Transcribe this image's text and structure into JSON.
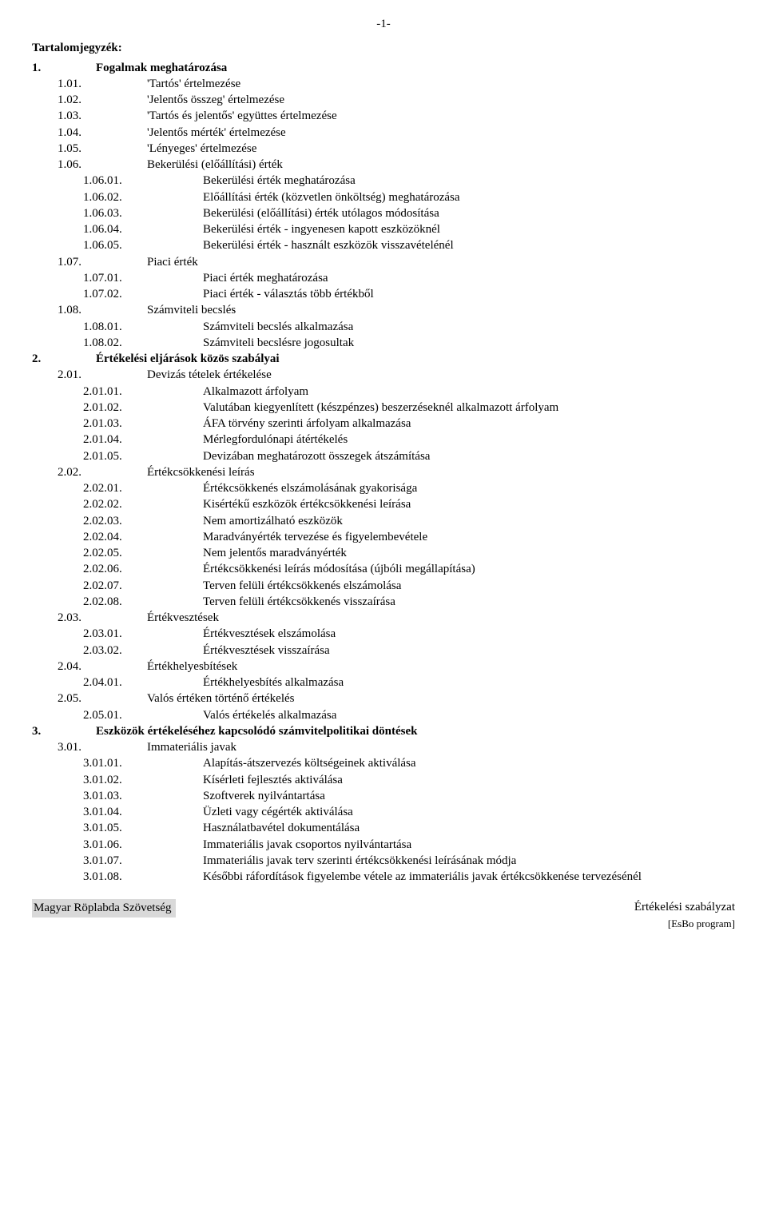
{
  "page_number": "-1-",
  "toc_title": "Tartalomjegyzék:",
  "entries": [
    {
      "level": 0,
      "num": "1.",
      "text": "Fogalmak meghatározása",
      "bold": true
    },
    {
      "level": 1,
      "num": "1.01.",
      "text": "'Tartós' értelmezése"
    },
    {
      "level": 1,
      "num": "1.02.",
      "text": "'Jelentős összeg' értelmezése"
    },
    {
      "level": 1,
      "num": "1.03.",
      "text": "'Tartós és jelentős' együttes értelmezése"
    },
    {
      "level": 1,
      "num": "1.04.",
      "text": "'Jelentős mérték' értelmezése"
    },
    {
      "level": 1,
      "num": "1.05.",
      "text": "'Lényeges' értelmezése"
    },
    {
      "level": 1,
      "num": "1.06.",
      "text": "Bekerülési (előállítási) érték"
    },
    {
      "level": 2,
      "num": "1.06.01.",
      "text": "Bekerülési érték meghatározása"
    },
    {
      "level": 2,
      "num": "1.06.02.",
      "text": "Előállítási érték (közvetlen önköltség) meghatározása"
    },
    {
      "level": 2,
      "num": "1.06.03.",
      "text": "Bekerülési (előállítási) érték utólagos módosítása"
    },
    {
      "level": 2,
      "num": "1.06.04.",
      "text": "Bekerülési érték - ingyenesen kapott eszközöknél"
    },
    {
      "level": 2,
      "num": "1.06.05.",
      "text": "Bekerülési érték - használt eszközök visszavételénél"
    },
    {
      "level": 1,
      "num": "1.07.",
      "text": "Piaci érték"
    },
    {
      "level": 2,
      "num": "1.07.01.",
      "text": "Piaci érték meghatározása"
    },
    {
      "level": 2,
      "num": "1.07.02.",
      "text": "Piaci érték - választás több értékből"
    },
    {
      "level": 1,
      "num": "1.08.",
      "text": "Számviteli becslés"
    },
    {
      "level": 2,
      "num": "1.08.01.",
      "text": "Számviteli becslés alkalmazása"
    },
    {
      "level": 2,
      "num": "1.08.02.",
      "text": "Számviteli becslésre jogosultak"
    },
    {
      "level": 0,
      "num": "2.",
      "text": "Értékelési eljárások közös szabályai",
      "bold": true
    },
    {
      "level": 1,
      "num": "2.01.",
      "text": "Devizás tételek értékelése"
    },
    {
      "level": 2,
      "num": "2.01.01.",
      "text": "Alkalmazott árfolyam"
    },
    {
      "level": 2,
      "num": "2.01.02.",
      "text": "Valutában kiegyenlített (készpénzes) beszerzéseknél alkalmazott árfolyam"
    },
    {
      "level": 2,
      "num": "2.01.03.",
      "text": "ÁFA törvény szerinti árfolyam alkalmazása"
    },
    {
      "level": 2,
      "num": "2.01.04.",
      "text": "Mérlegfordulónapi átértékelés"
    },
    {
      "level": 2,
      "num": "2.01.05.",
      "text": "Devizában meghatározott összegek átszámítása"
    },
    {
      "level": 1,
      "num": "2.02.",
      "text": "Értékcsökkenési leírás"
    },
    {
      "level": 2,
      "num": "2.02.01.",
      "text": "Értékcsökkenés elszámolásának gyakorisága"
    },
    {
      "level": 2,
      "num": "2.02.02.",
      "text": "Kisértékű eszközök értékcsökkenési leírása"
    },
    {
      "level": 2,
      "num": "2.02.03.",
      "text": "Nem amortizálható eszközök"
    },
    {
      "level": 2,
      "num": "2.02.04.",
      "text": "Maradványérték tervezése és figyelembevétele"
    },
    {
      "level": 2,
      "num": "2.02.05.",
      "text": "Nem jelentős maradványérték"
    },
    {
      "level": 2,
      "num": "2.02.06.",
      "text": "Értékcsökkenési leírás módosítása (újbóli megállapítása)"
    },
    {
      "level": 2,
      "num": "2.02.07.",
      "text": "Terven felüli értékcsökkenés elszámolása"
    },
    {
      "level": 2,
      "num": "2.02.08.",
      "text": "Terven felüli értékcsökkenés visszaírása"
    },
    {
      "level": 1,
      "num": "2.03.",
      "text": "Értékvesztések"
    },
    {
      "level": 2,
      "num": "2.03.01.",
      "text": "Értékvesztések elszámolása"
    },
    {
      "level": 2,
      "num": "2.03.02.",
      "text": "Értékvesztések visszaírása"
    },
    {
      "level": 1,
      "num": "2.04.",
      "text": "Értékhelyesbítések"
    },
    {
      "level": 2,
      "num": "2.04.01.",
      "text": "Értékhelyesbítés alkalmazása"
    },
    {
      "level": 1,
      "num": "2.05.",
      "text": "Valós értéken történő értékelés"
    },
    {
      "level": 2,
      "num": "2.05.01.",
      "text": "Valós értékelés alkalmazása"
    },
    {
      "level": 0,
      "num": "3.",
      "text": "Eszközök értékeléséhez kapcsolódó számvitelpolitikai döntések",
      "bold": true
    },
    {
      "level": 1,
      "num": "3.01.",
      "text": "Immateriális javak"
    },
    {
      "level": 2,
      "num": "3.01.01.",
      "text": "Alapítás-átszervezés költségeinek aktiválása"
    },
    {
      "level": 2,
      "num": "3.01.02.",
      "text": "Kísérleti fejlesztés aktiválása"
    },
    {
      "level": 2,
      "num": "3.01.03.",
      "text": "Szoftverek nyilvántartása"
    },
    {
      "level": 2,
      "num": "3.01.04.",
      "text": "Üzleti vagy cégérték aktiválása"
    },
    {
      "level": 2,
      "num": "3.01.05.",
      "text": "Használatbavétel dokumentálása"
    },
    {
      "level": 2,
      "num": "3.01.06.",
      "text": "Immateriális javak csoportos nyilvántartása"
    },
    {
      "level": 2,
      "num": "3.01.07.",
      "text": "Immateriális javak terv szerinti értékcsökkenési leírásának módja"
    },
    {
      "level": 2,
      "num": "3.01.08.",
      "text": "Későbbi ráfordítások figyelembe vétele az immateriális javak értékcsökkenése tervezésénél"
    }
  ],
  "footer_left": "Magyar Röplabda Szövetség",
  "footer_right_main": "Értékelési szabályzat",
  "footer_right_sub": "[EsBo program]"
}
